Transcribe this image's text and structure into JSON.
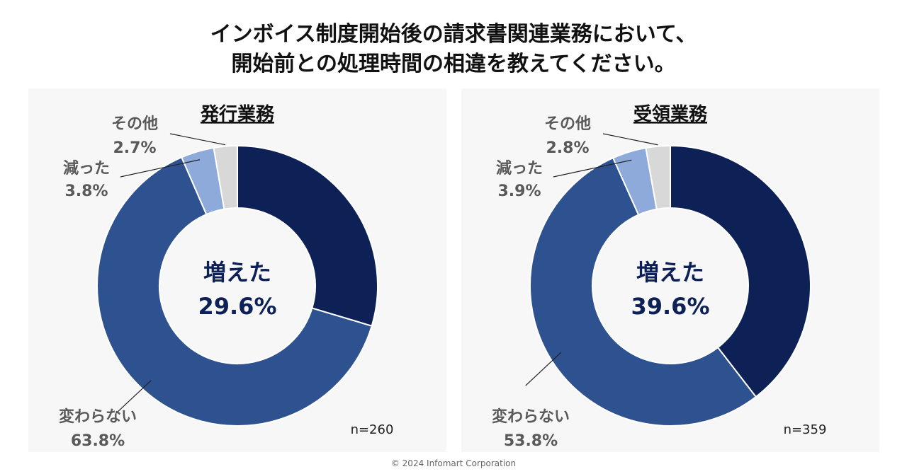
{
  "title": {
    "line1": "インボイス制度開始後の請求書関連業務において、",
    "line2": "開始前との処理時間の相違を教えてください。"
  },
  "footer": "© 2024 Infomart Corporation",
  "colors": {
    "increased": "#0d2157",
    "unchanged": "#2e5190",
    "decreased": "#8eaadb",
    "other": "#d8d8d8",
    "center_text": "#0d2157",
    "label_text": "#595959"
  },
  "chart_data": [
    {
      "type": "pie",
      "title": "発行業務",
      "n_label": "n=260",
      "center_label": "増えた",
      "center_value": "29.6%",
      "slices": [
        {
          "label": "増えた",
          "value": 29.6,
          "display": "29.6%"
        },
        {
          "label": "変わらない",
          "value": 63.8,
          "display": "63.8%"
        },
        {
          "label": "減った",
          "value": 3.8,
          "display": "3.8%"
        },
        {
          "label": "その他",
          "value": 2.7,
          "display": "2.7%"
        }
      ]
    },
    {
      "type": "pie",
      "title": "受領業務",
      "n_label": "n=359",
      "center_label": "増えた",
      "center_value": "39.6%",
      "slices": [
        {
          "label": "増えた",
          "value": 39.6,
          "display": "39.6%"
        },
        {
          "label": "変わらない",
          "value": 53.8,
          "display": "53.8%"
        },
        {
          "label": "減った",
          "value": 3.9,
          "display": "3.9%"
        },
        {
          "label": "その他",
          "value": 2.8,
          "display": "2.8%"
        }
      ]
    }
  ]
}
